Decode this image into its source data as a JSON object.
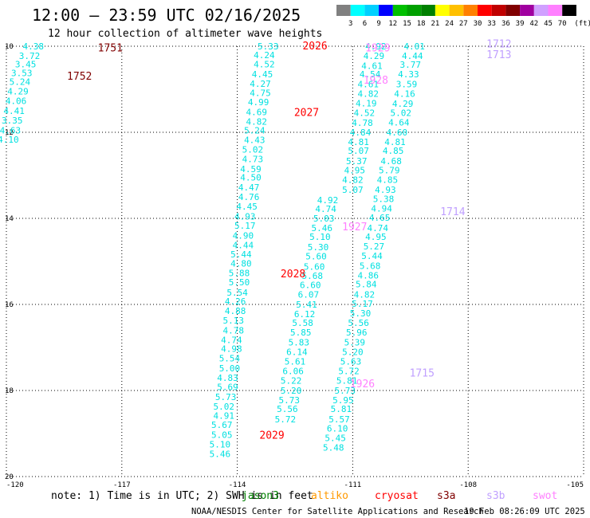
{
  "chart_data": {
    "type": "scatter",
    "title": "12:00 — 23:59 UTC 02/16/2025",
    "subtitle": "12 hour collection of altimeter wave heights",
    "x_ticks": [
      "-120",
      "-117",
      "-114",
      "-111",
      "-108",
      "-105"
    ],
    "y_ticks": [
      "10",
      "12",
      "14",
      "16",
      "18",
      "20"
    ],
    "xlim": [
      -120,
      -105
    ],
    "ylim": [
      20,
      10
    ],
    "grid": true,
    "colorbar": {
      "labels": [
        "3",
        "6",
        "9",
        "12",
        "15",
        "18",
        "21",
        "24",
        "27",
        "30",
        "33",
        "36",
        "39",
        "42",
        "45",
        "70"
      ],
      "unit": "(ft)",
      "colors": [
        "#808080",
        "#00ffff",
        "#00d0ff",
        "#0000ff",
        "#00c000",
        "#00a000",
        "#008000",
        "#ffff00",
        "#ffc000",
        "#ff8000",
        "#ff0000",
        "#c00000",
        "#800000",
        "#a000a0",
        "#d0a0ff",
        "#ff80ff",
        "#000000"
      ]
    },
    "track_labels": [
      {
        "text": "1751",
        "lon": -117.3,
        "lat": 10.05,
        "color": "#800000"
      },
      {
        "text": "1752",
        "lon": -118.1,
        "lat": 10.7,
        "color": "#800000"
      },
      {
        "text": "2026",
        "lon": -111.98,
        "lat": 10.0,
        "color": "#ff0000"
      },
      {
        "text": "2027",
        "lon": -112.2,
        "lat": 11.55,
        "color": "#ff0000"
      },
      {
        "text": "2028",
        "lon": -112.55,
        "lat": 15.3,
        "color": "#ff0000"
      },
      {
        "text": "2029",
        "lon": -113.1,
        "lat": 19.05,
        "color": "#ff0000"
      },
      {
        "text": "1929",
        "lon": -110.35,
        "lat": 10.05,
        "color": "#ff80ff"
      },
      {
        "text": "1928",
        "lon": -110.4,
        "lat": 10.8,
        "color": "#ff80ff"
      },
      {
        "text": "1927",
        "lon": -110.95,
        "lat": 14.2,
        "color": "#ff80ff"
      },
      {
        "text": "1926",
        "lon": -110.75,
        "lat": 17.85,
        "color": "#ff80ff"
      },
      {
        "text": "1712",
        "lon": -107.2,
        "lat": 9.95,
        "color": "#c0a0ff"
      },
      {
        "text": "1713",
        "lon": -107.2,
        "lat": 10.2,
        "color": "#c0a0ff"
      },
      {
        "text": "1714",
        "lon": -108.4,
        "lat": 13.85,
        "color": "#c0a0ff"
      },
      {
        "text": "1715",
        "lon": -109.2,
        "lat": 17.6,
        "color": "#c0a0ff"
      }
    ],
    "series": [
      {
        "color": "#00e0e0",
        "values": [
          {
            "lon": -119.3,
            "lat": 10.0,
            "swh": "4.38"
          },
          {
            "lon": -119.4,
            "lat": 10.22,
            "swh": "3.72"
          },
          {
            "lon": -119.5,
            "lat": 10.42,
            "swh": "3.45"
          },
          {
            "lon": -119.6,
            "lat": 10.62,
            "swh": "3.53"
          },
          {
            "lon": -119.65,
            "lat": 10.82,
            "swh": "5.24"
          },
          {
            "lon": -119.7,
            "lat": 11.05,
            "swh": "4.29"
          },
          {
            "lon": -119.75,
            "lat": 11.27,
            "swh": "4.06"
          },
          {
            "lon": -119.8,
            "lat": 11.5,
            "swh": "4.41"
          },
          {
            "lon": -119.85,
            "lat": 11.72,
            "swh": "3.35"
          },
          {
            "lon": -119.9,
            "lat": 11.95,
            "swh": "4.63"
          },
          {
            "lon": -119.95,
            "lat": 12.17,
            "swh": "4.10"
          },
          {
            "lon": -113.2,
            "lat": 10.0,
            "swh": "5.33"
          },
          {
            "lon": -113.3,
            "lat": 10.2,
            "swh": "4.24"
          },
          {
            "lon": -113.3,
            "lat": 10.42,
            "swh": "4.52"
          },
          {
            "lon": -113.35,
            "lat": 10.65,
            "swh": "4.45"
          },
          {
            "lon": -113.4,
            "lat": 10.87,
            "swh": "4.27"
          },
          {
            "lon": -113.4,
            "lat": 11.08,
            "swh": "4.75"
          },
          {
            "lon": -113.45,
            "lat": 11.3,
            "swh": "4.99"
          },
          {
            "lon": -113.5,
            "lat": 11.53,
            "swh": "4.69"
          },
          {
            "lon": -113.5,
            "lat": 11.75,
            "swh": "4.82"
          },
          {
            "lon": -113.55,
            "lat": 11.95,
            "swh": "5.24"
          },
          {
            "lon": -113.55,
            "lat": 12.18,
            "swh": "4.43"
          },
          {
            "lon": -113.6,
            "lat": 12.4,
            "swh": "5.02"
          },
          {
            "lon": -113.6,
            "lat": 12.62,
            "swh": "4.73"
          },
          {
            "lon": -113.65,
            "lat": 12.85,
            "swh": "4.59"
          },
          {
            "lon": -113.65,
            "lat": 13.05,
            "swh": "4.50"
          },
          {
            "lon": -113.7,
            "lat": 13.28,
            "swh": "4.47"
          },
          {
            "lon": -113.7,
            "lat": 13.5,
            "swh": "4.76"
          },
          {
            "lon": -113.75,
            "lat": 13.72,
            "swh": "4.45"
          },
          {
            "lon": -113.8,
            "lat": 13.95,
            "swh": "4.93"
          },
          {
            "lon": -113.8,
            "lat": 14.17,
            "swh": "5.17"
          },
          {
            "lon": -113.85,
            "lat": 14.4,
            "swh": "4.90"
          },
          {
            "lon": -113.85,
            "lat": 14.62,
            "swh": "4.44"
          },
          {
            "lon": -113.9,
            "lat": 14.83,
            "swh": "5.44"
          },
          {
            "lon": -113.9,
            "lat": 15.05,
            "swh": "4.80"
          },
          {
            "lon": -113.95,
            "lat": 15.27,
            "swh": "5.88"
          },
          {
            "lon": -113.95,
            "lat": 15.48,
            "swh": "5.50"
          },
          {
            "lon": -114.0,
            "lat": 15.72,
            "swh": "5.54"
          },
          {
            "lon": -114.05,
            "lat": 15.93,
            "swh": "4.26"
          },
          {
            "lon": -114.05,
            "lat": 16.15,
            "swh": "4.88"
          },
          {
            "lon": -114.1,
            "lat": 16.37,
            "swh": "5.13"
          },
          {
            "lon": -114.1,
            "lat": 16.6,
            "swh": "4.78"
          },
          {
            "lon": -114.15,
            "lat": 16.82,
            "swh": "4.74"
          },
          {
            "lon": -114.15,
            "lat": 17.03,
            "swh": "4.98"
          },
          {
            "lon": -114.2,
            "lat": 17.25,
            "swh": "5.54"
          },
          {
            "lon": -114.2,
            "lat": 17.48,
            "swh": "5.00"
          },
          {
            "lon": -114.25,
            "lat": 17.7,
            "swh": "4.83"
          },
          {
            "lon": -114.25,
            "lat": 17.92,
            "swh": "5.69"
          },
          {
            "lon": -114.3,
            "lat": 18.15,
            "swh": "5.73"
          },
          {
            "lon": -114.35,
            "lat": 18.37,
            "swh": "5.02"
          },
          {
            "lon": -114.35,
            "lat": 18.58,
            "swh": "4.91"
          },
          {
            "lon": -114.4,
            "lat": 18.8,
            "swh": "5.67"
          },
          {
            "lon": -114.4,
            "lat": 19.03,
            "swh": "5.05"
          },
          {
            "lon": -114.45,
            "lat": 19.25,
            "swh": "5.10"
          },
          {
            "lon": -114.45,
            "lat": 19.47,
            "swh": "5.46"
          },
          {
            "lon": -110.4,
            "lat": 10.0,
            "swh": "4.92"
          },
          {
            "lon": -110.45,
            "lat": 10.22,
            "swh": "4.29"
          },
          {
            "lon": -110.5,
            "lat": 10.45,
            "swh": "4.61"
          },
          {
            "lon": -110.55,
            "lat": 10.65,
            "swh": "4.54"
          },
          {
            "lon": -110.6,
            "lat": 10.88,
            "swh": "4.61"
          },
          {
            "lon": -110.6,
            "lat": 11.1,
            "swh": "4.82"
          },
          {
            "lon": -110.65,
            "lat": 11.32,
            "swh": "4.19"
          },
          {
            "lon": -110.7,
            "lat": 11.55,
            "swh": "4.52"
          },
          {
            "lon": -110.75,
            "lat": 11.78,
            "swh": "4.78"
          },
          {
            "lon": -110.8,
            "lat": 12.0,
            "swh": "4.84"
          },
          {
            "lon": -110.85,
            "lat": 12.22,
            "swh": "4.81"
          },
          {
            "lon": -110.85,
            "lat": 12.43,
            "swh": "5.07"
          },
          {
            "lon": -110.9,
            "lat": 12.67,
            "swh": "5.37"
          },
          {
            "lon": -110.95,
            "lat": 12.88,
            "swh": "4.95"
          },
          {
            "lon": -111.0,
            "lat": 13.1,
            "swh": "4.82"
          },
          {
            "lon": -111.0,
            "lat": 13.33,
            "swh": "5.07"
          },
          {
            "lon": -111.65,
            "lat": 13.57,
            "swh": "4.92"
          },
          {
            "lon": -111.7,
            "lat": 13.78,
            "swh": "4.74"
          },
          {
            "lon": -111.75,
            "lat": 14.0,
            "swh": "5.03"
          },
          {
            "lon": -111.8,
            "lat": 14.22,
            "swh": "5.46"
          },
          {
            "lon": -111.85,
            "lat": 14.43,
            "swh": "5.10"
          },
          {
            "lon": -111.9,
            "lat": 14.67,
            "swh": "5.30"
          },
          {
            "lon": -111.95,
            "lat": 14.88,
            "swh": "5.60"
          },
          {
            "lon": -112.0,
            "lat": 15.12,
            "swh": "5.60"
          },
          {
            "lon": -112.05,
            "lat": 15.33,
            "swh": "5.68"
          },
          {
            "lon": -112.1,
            "lat": 15.55,
            "swh": "6.60"
          },
          {
            "lon": -112.15,
            "lat": 15.77,
            "swh": "6.07"
          },
          {
            "lon": -112.2,
            "lat": 16.0,
            "swh": "5.41"
          },
          {
            "lon": -112.25,
            "lat": 16.22,
            "swh": "6.12"
          },
          {
            "lon": -112.3,
            "lat": 16.43,
            "swh": "5.58"
          },
          {
            "lon": -112.35,
            "lat": 16.65,
            "swh": "5.85"
          },
          {
            "lon": -112.4,
            "lat": 16.88,
            "swh": "5.83"
          },
          {
            "lon": -112.45,
            "lat": 17.1,
            "swh": "6.14"
          },
          {
            "lon": -112.5,
            "lat": 17.32,
            "swh": "5.61"
          },
          {
            "lon": -112.55,
            "lat": 17.55,
            "swh": "6.06"
          },
          {
            "lon": -112.6,
            "lat": 17.77,
            "swh": "5.22"
          },
          {
            "lon": -112.6,
            "lat": 18.0,
            "swh": "5.20"
          },
          {
            "lon": -112.65,
            "lat": 18.22,
            "swh": "5.73"
          },
          {
            "lon": -112.7,
            "lat": 18.43,
            "swh": "5.56"
          },
          {
            "lon": -112.75,
            "lat": 18.67,
            "swh": "5.72"
          },
          {
            "lon": -109.4,
            "lat": 10.0,
            "swh": "4.01"
          },
          {
            "lon": -109.45,
            "lat": 10.22,
            "swh": "4.44"
          },
          {
            "lon": -109.5,
            "lat": 10.43,
            "swh": "3.77"
          },
          {
            "lon": -109.55,
            "lat": 10.65,
            "swh": "4.33"
          },
          {
            "lon": -109.6,
            "lat": 10.88,
            "swh": "3.59"
          },
          {
            "lon": -109.65,
            "lat": 11.1,
            "swh": "4.16"
          },
          {
            "lon": -109.7,
            "lat": 11.33,
            "swh": "4.29"
          },
          {
            "lon": -109.75,
            "lat": 11.55,
            "swh": "5.02"
          },
          {
            "lon": -109.8,
            "lat": 11.77,
            "swh": "4.64"
          },
          {
            "lon": -109.85,
            "lat": 12.0,
            "swh": "4.60"
          },
          {
            "lon": -109.9,
            "lat": 12.22,
            "swh": "4.81"
          },
          {
            "lon": -109.95,
            "lat": 12.43,
            "swh": "4.85"
          },
          {
            "lon": -110.0,
            "lat": 12.67,
            "swh": "4.68"
          },
          {
            "lon": -110.05,
            "lat": 12.88,
            "swh": "5.79"
          },
          {
            "lon": -110.1,
            "lat": 13.1,
            "swh": "4.85"
          },
          {
            "lon": -110.15,
            "lat": 13.33,
            "swh": "4.93"
          },
          {
            "lon": -110.2,
            "lat": 13.55,
            "swh": "5.38"
          },
          {
            "lon": -110.25,
            "lat": 13.77,
            "swh": "4.94"
          },
          {
            "lon": -110.3,
            "lat": 13.98,
            "swh": "4.65"
          },
          {
            "lon": -110.35,
            "lat": 14.22,
            "swh": "4.74"
          },
          {
            "lon": -110.4,
            "lat": 14.43,
            "swh": "4.95"
          },
          {
            "lon": -110.45,
            "lat": 14.65,
            "swh": "5.27"
          },
          {
            "lon": -110.5,
            "lat": 14.87,
            "swh": "5.44"
          },
          {
            "lon": -110.55,
            "lat": 15.1,
            "swh": "5.68"
          },
          {
            "lon": -110.6,
            "lat": 15.32,
            "swh": "4.86"
          },
          {
            "lon": -110.65,
            "lat": 15.53,
            "swh": "5.84"
          },
          {
            "lon": -110.7,
            "lat": 15.77,
            "swh": "4.82"
          },
          {
            "lon": -110.75,
            "lat": 15.98,
            "swh": "5.17"
          },
          {
            "lon": -110.8,
            "lat": 16.2,
            "swh": "5.30"
          },
          {
            "lon": -110.85,
            "lat": 16.43,
            "swh": "5.56"
          },
          {
            "lon": -110.9,
            "lat": 16.65,
            "swh": "5.96"
          },
          {
            "lon": -110.95,
            "lat": 16.88,
            "swh": "5.39"
          },
          {
            "lon": -111.0,
            "lat": 17.1,
            "swh": "5.20"
          },
          {
            "lon": -111.05,
            "lat": 17.32,
            "swh": "5.63"
          },
          {
            "lon": -111.1,
            "lat": 17.55,
            "swh": "5.72"
          },
          {
            "lon": -111.15,
            "lat": 17.77,
            "swh": "5.81"
          },
          {
            "lon": -111.2,
            "lat": 18.0,
            "swh": "5.73"
          },
          {
            "lon": -111.25,
            "lat": 18.22,
            "swh": "5.95"
          },
          {
            "lon": -111.3,
            "lat": 18.43,
            "swh": "5.81"
          },
          {
            "lon": -111.35,
            "lat": 18.67,
            "swh": "5.57"
          },
          {
            "lon": -111.4,
            "lat": 18.88,
            "swh": "6.10"
          },
          {
            "lon": -111.45,
            "lat": 19.1,
            "swh": "5.45"
          },
          {
            "lon": -111.5,
            "lat": 19.32,
            "swh": "5.48"
          }
        ]
      }
    ]
  },
  "footer": {
    "note": "note: 1) Time is in UTC; 2) SWH is in feet",
    "satellites": [
      {
        "name": "jason3",
        "color": "#008000"
      },
      {
        "name": "altiko",
        "color": "#ff9900"
      },
      {
        "name": "cryosat",
        "color": "#ff0000"
      },
      {
        "name": "s3a",
        "color": "#800000"
      },
      {
        "name": "s3b",
        "color": "#c0a0ff"
      },
      {
        "name": "swot",
        "color": "#ff80ff"
      }
    ],
    "credit": "NOAA/NESDIS Center for Satellite Applications and Research",
    "timestamp": "19 Feb 08:26:09 UTC 2025"
  }
}
